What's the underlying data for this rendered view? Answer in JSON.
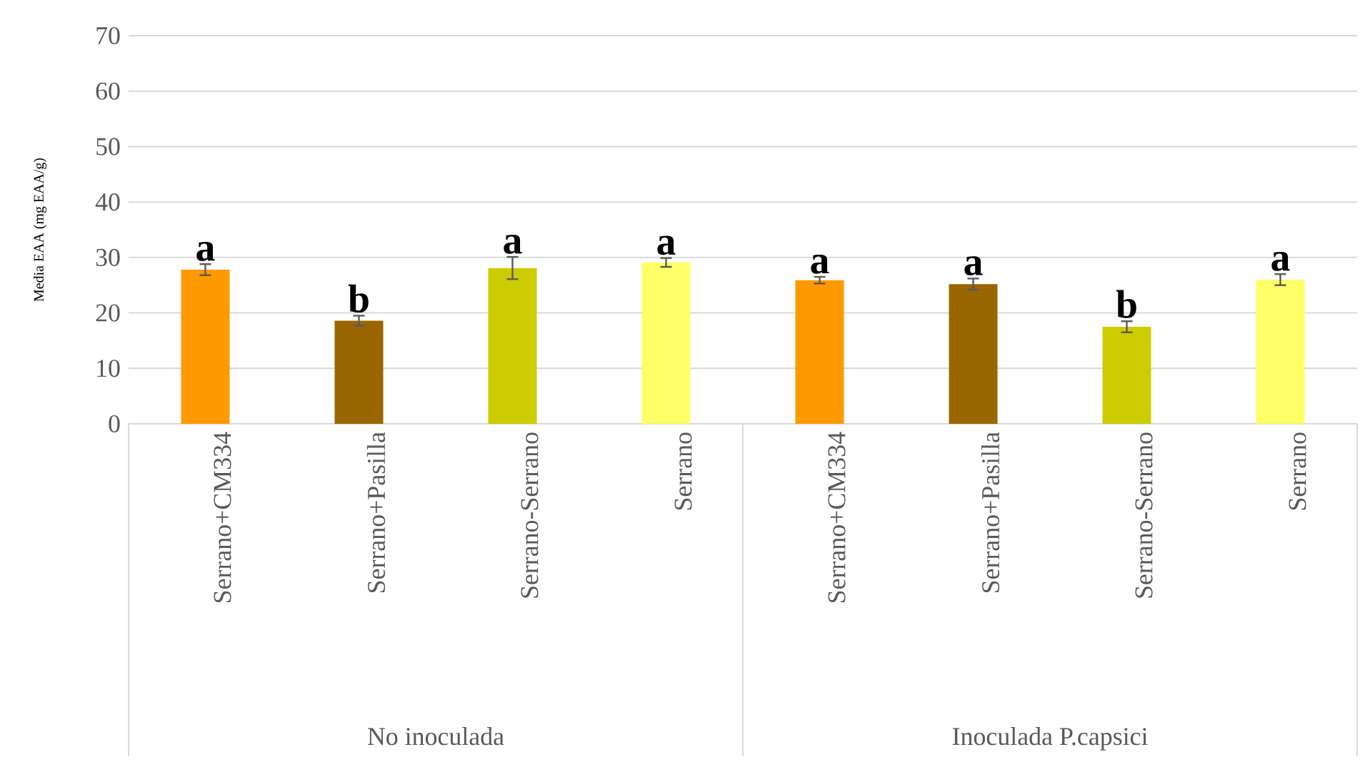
{
  "chart_data": {
    "type": "bar",
    "ylabel": "Media  EAA (mg EAA/g)",
    "categories": [
      "Serrano+CM334",
      "Serrano+Pasilla",
      "Serrano-Serrano",
      "Serrano",
      "Serrano+CM334",
      "Serrano+Pasilla",
      "Serrano-Serrano",
      "Serrano"
    ],
    "values": [
      27.8,
      18.6,
      28.1,
      29.1,
      25.9,
      25.2,
      17.5,
      26.0
    ],
    "errors": [
      1.0,
      0.9,
      2.0,
      0.8,
      0.6,
      1.0,
      1.0,
      1.0
    ],
    "colors": [
      "#ff9900",
      "#996600",
      "#cccc00",
      "#ffff66",
      "#ff9900",
      "#996600",
      "#cccc00",
      "#ffff66"
    ],
    "value_labels": [
      "a",
      "b",
      "a",
      "a",
      "a",
      "a",
      "b",
      "a"
    ],
    "annotations": [
      "No inoculada",
      "Inoculada P.capsici"
    ],
    "ylim": [
      0,
      70
    ],
    "yticks": [
      0,
      10,
      20,
      30,
      40,
      50,
      60,
      70
    ],
    "grid": "y"
  }
}
